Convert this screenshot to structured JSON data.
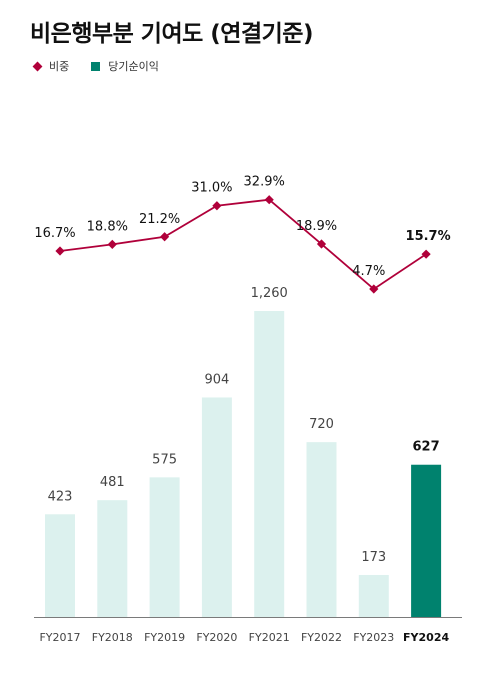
{
  "chart_data": {
    "type": "bar+line",
    "title": "비은행부분 기여도 (연결기준)",
    "categories": [
      "FY2017",
      "FY2018",
      "FY2019",
      "FY2020",
      "FY2021",
      "FY2022",
      "FY2023",
      "FY2024"
    ],
    "series": [
      {
        "name": "비중",
        "type": "line",
        "color": "#b0003a",
        "values": [
          16.7,
          18.8,
          21.2,
          31.0,
          32.9,
          18.9,
          4.7,
          15.7
        ],
        "labels": [
          "16.7%",
          "18.8%",
          "21.2%",
          "31.0%",
          "32.9%",
          "18.9%",
          "4.7%",
          "15.7%"
        ]
      },
      {
        "name": "당기순이익",
        "type": "bar",
        "color": "#dcf1ee",
        "highlight_color": "#00826e",
        "values": [
          423,
          481,
          575,
          904,
          1260,
          720,
          173,
          627
        ],
        "labels": [
          "423",
          "481",
          "575",
          "904",
          "1,260",
          "720",
          "173",
          "627"
        ]
      }
    ],
    "highlight_index": 7,
    "legend_position": "top-left",
    "grid": false
  }
}
